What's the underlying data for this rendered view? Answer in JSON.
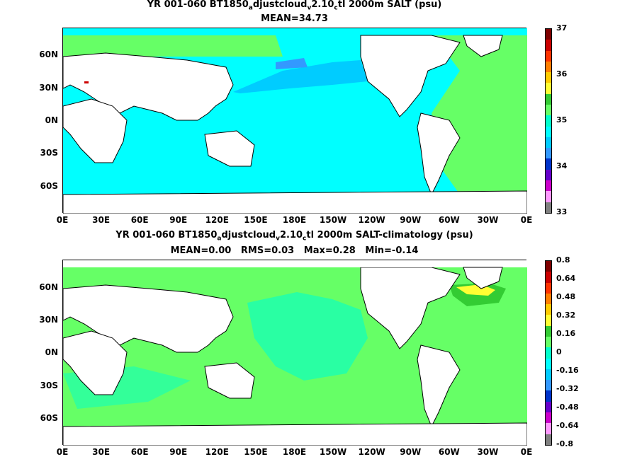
{
  "panel1": {
    "title_line1": "YR 001-060 BT1850",
    "title_sub1": "a",
    "title_mid1": "djustcloud",
    "title_sub2": "v",
    "title_mid2": "2.10",
    "title_sub3": "c",
    "title_end": "tl 2000m SALT (psu)",
    "title_line2": "MEAN=34.73",
    "colorbar_labels": [
      "37",
      "36",
      "35",
      "34",
      "33"
    ],
    "colorbar_colors": [
      "#7f0000",
      "#cc0000",
      "#ff3300",
      "#ff7f00",
      "#ffcc00",
      "#ffff33",
      "#33cc33",
      "#66ff66",
      "#00ffcc",
      "#00ffff",
      "#00ccff",
      "#3399ff",
      "#0033cc",
      "#6600cc",
      "#cc00cc",
      "#ff99ff",
      "#808080"
    ]
  },
  "panel2": {
    "title_line1": "YR 001-060 BT1850",
    "title_sub1": "a",
    "title_mid1": "djustcloud",
    "title_sub2": "v",
    "title_mid2": "2.10",
    "title_sub3": "c",
    "title_end": "tl 2000m SALT-climatology (psu)",
    "title_line2": "MEAN=0.00   RMS=0.03   Max=0.28   Min=-0.14",
    "colorbar_labels": [
      "0.8",
      "0.64",
      "0.48",
      "0.32",
      "0.16",
      "0",
      "-0.16",
      "-0.32",
      "-0.48",
      "-0.64",
      "-0.8"
    ],
    "colorbar_colors": [
      "#7f0000",
      "#cc0000",
      "#ff3300",
      "#ff7f00",
      "#ffcc00",
      "#ffff33",
      "#33cc33",
      "#66ff66",
      "#00ffcc",
      "#00ffff",
      "#00ccff",
      "#3399ff",
      "#0033cc",
      "#6600cc",
      "#cc00cc",
      "#ff99ff",
      "#808080"
    ]
  },
  "lat_labels": [
    "60N",
    "30N",
    "0N",
    "30S",
    "60S"
  ],
  "lon_labels": [
    "0E",
    "30E",
    "60E",
    "90E",
    "120E",
    "150E",
    "180E",
    "150W",
    "120W",
    "90W",
    "60W",
    "30W",
    "0E"
  ],
  "colors": {
    "ocean_cyan": "#00ffff",
    "ocean_blue": "#00ccff",
    "ocean_deep": "#3399ff",
    "ocean_green": "#66ff66",
    "ocean_teal": "#00ffcc",
    "mask_red": "#cc0000",
    "land": "#ffffff",
    "coast": "#000000"
  }
}
